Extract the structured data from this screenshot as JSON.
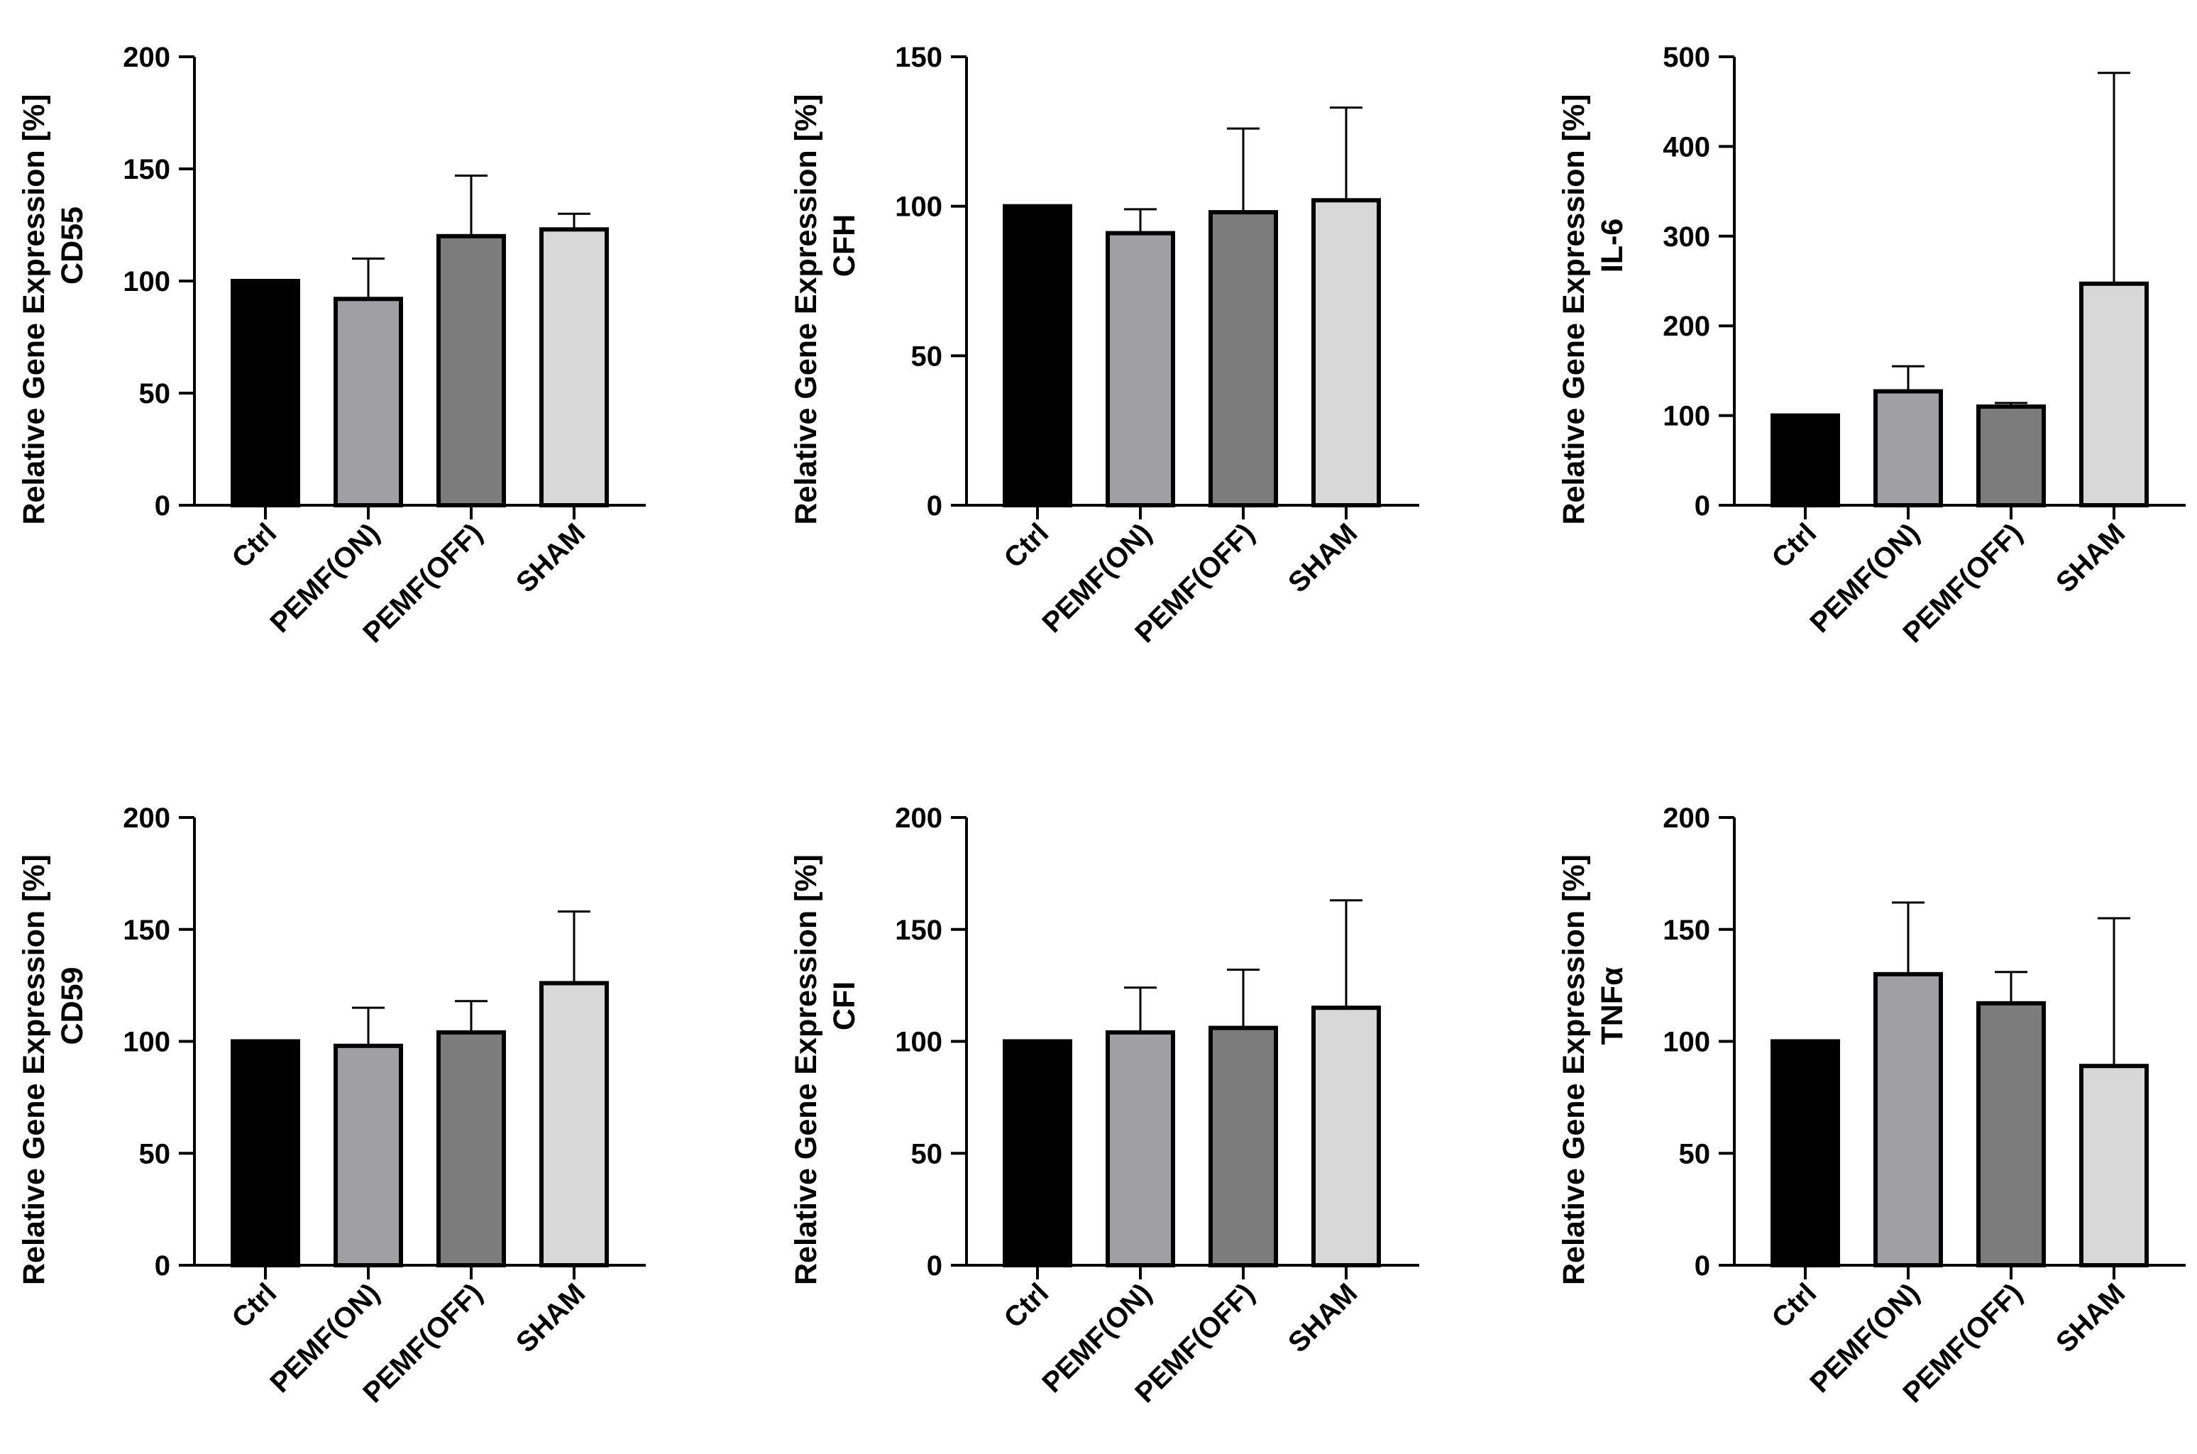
{
  "figure": {
    "bar_colors": [
      "#000000",
      "#a0a0a4",
      "#7c7c7c",
      "#d8d8d8"
    ],
    "axis_color": "#000000"
  },
  "chart_data": [
    {
      "type": "bar",
      "ylabel_line1": "Relative Gene Expression [%]",
      "ylabel_line2": "CD55",
      "categories": [
        "Ctrl",
        "PEMF(ON)",
        "PEMF(OFF)",
        "SHAM"
      ],
      "values": [
        100,
        92,
        120,
        123
      ],
      "errors": [
        0,
        18,
        27,
        7
      ],
      "ylim": [
        0,
        200
      ],
      "yticks": [
        0,
        50,
        100,
        150,
        200
      ]
    },
    {
      "type": "bar",
      "ylabel_line1": "Relative Gene Expression [%]",
      "ylabel_line2": "CFH",
      "categories": [
        "Ctrl",
        "PEMF(ON)",
        "PEMF(OFF)",
        "SHAM"
      ],
      "values": [
        100,
        91,
        98,
        102
      ],
      "errors": [
        0,
        8,
        28,
        31
      ],
      "ylim": [
        0,
        150
      ],
      "yticks": [
        0,
        50,
        100,
        150
      ]
    },
    {
      "type": "bar",
      "ylabel_line1": "Relative Gene Expression [%]",
      "ylabel_line2": "IL-6",
      "categories": [
        "Ctrl",
        "PEMF(ON)",
        "PEMF(OFF)",
        "SHAM"
      ],
      "values": [
        100,
        127,
        110,
        247
      ],
      "errors": [
        0,
        28,
        4,
        235
      ],
      "ylim": [
        0,
        500
      ],
      "yticks": [
        0,
        100,
        200,
        300,
        400,
        500
      ]
    },
    {
      "type": "bar",
      "ylabel_line1": "Relative Gene Expression [%]",
      "ylabel_line2": "CD59",
      "categories": [
        "Ctrl",
        "PEMF(ON)",
        "PEMF(OFF)",
        "SHAM"
      ],
      "values": [
        100,
        98,
        104,
        126
      ],
      "errors": [
        0,
        17,
        14,
        32
      ],
      "ylim": [
        0,
        200
      ],
      "yticks": [
        0,
        50,
        100,
        150,
        200
      ]
    },
    {
      "type": "bar",
      "ylabel_line1": "Relative Gene Expression [%]",
      "ylabel_line2": "CFI",
      "categories": [
        "Ctrl",
        "PEMF(ON)",
        "PEMF(OFF)",
        "SHAM"
      ],
      "values": [
        100,
        104,
        106,
        115
      ],
      "errors": [
        0,
        20,
        26,
        48
      ],
      "ylim": [
        0,
        200
      ],
      "yticks": [
        0,
        50,
        100,
        150,
        200
      ]
    },
    {
      "type": "bar",
      "ylabel_line1": "Relative Gene Expression [%]",
      "ylabel_line2": "TNFα",
      "categories": [
        "Ctrl",
        "PEMF(ON)",
        "PEMF(OFF)",
        "SHAM"
      ],
      "values": [
        100,
        130,
        117,
        89
      ],
      "errors": [
        0,
        32,
        14,
        66
      ],
      "ylim": [
        0,
        200
      ],
      "yticks": [
        0,
        50,
        100,
        150,
        200
      ]
    }
  ]
}
